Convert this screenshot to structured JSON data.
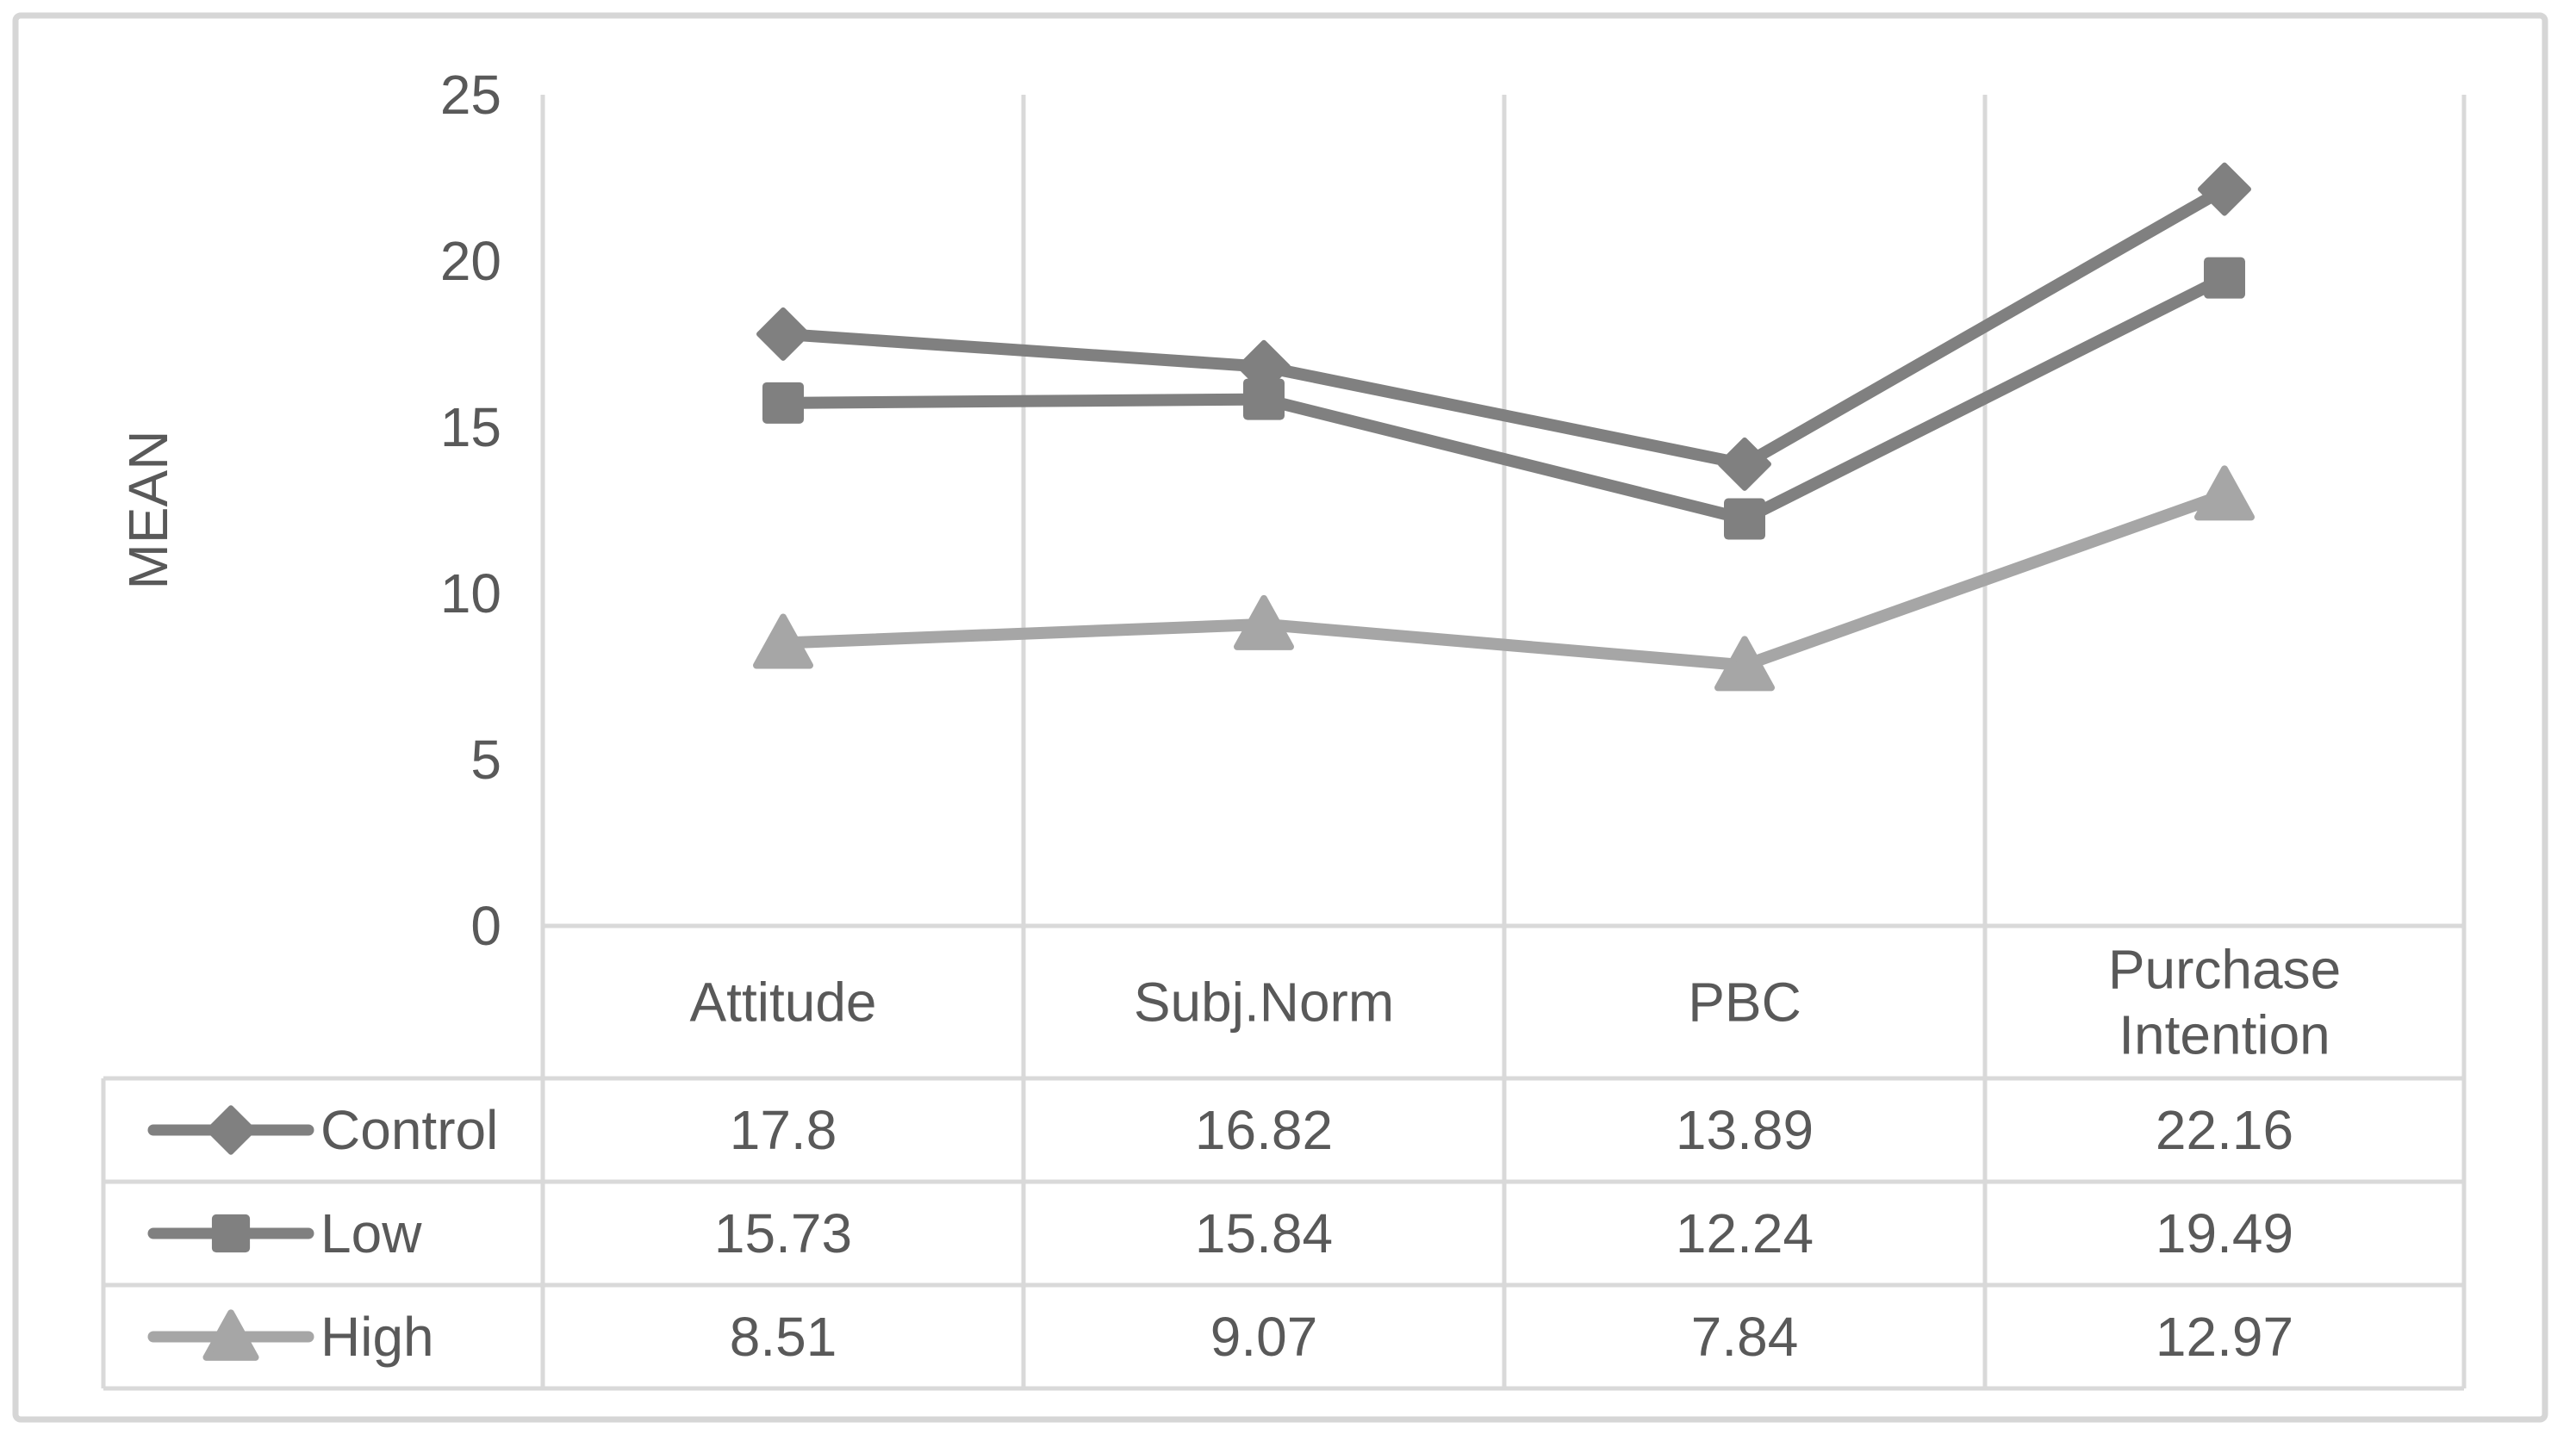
{
  "figure": {
    "background": "#ffffff",
    "outer_border_color": "#d6d6d6",
    "grid_color": "#d9d9d9",
    "text_color": "#595959"
  },
  "chart_data": {
    "type": "line",
    "title": "",
    "xlabel": "",
    "ylabel": "MEAN",
    "categories": [
      "Attitude",
      "Subj.Norm",
      "PBC",
      "Purchase Intention"
    ],
    "series": [
      {
        "name": "Control",
        "marker": "diamond",
        "color": "#808080",
        "values": [
          17.8,
          16.82,
          13.89,
          22.16
        ]
      },
      {
        "name": "Low",
        "marker": "square",
        "color": "#808080",
        "values": [
          15.73,
          15.84,
          12.24,
          19.49
        ]
      },
      {
        "name": "High",
        "marker": "triangle",
        "color": "#a6a6a6",
        "values": [
          8.51,
          9.07,
          7.84,
          12.97
        ]
      }
    ],
    "ylim": [
      0,
      25
    ],
    "y_ticks": [
      25,
      20,
      15,
      10,
      5,
      0
    ],
    "grid": "vertical-category-gridlines-only",
    "legend_position": "data-table-left-column",
    "data_table_shown": true
  }
}
